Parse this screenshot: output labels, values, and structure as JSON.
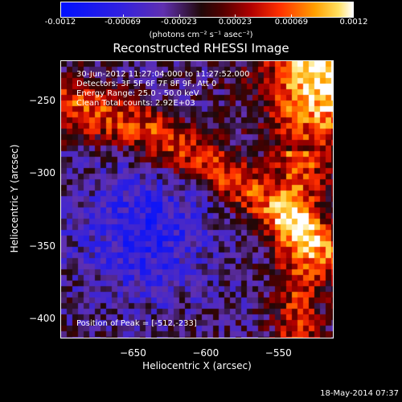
{
  "colorbar": {
    "min": -0.0012,
    "max": 0.0012,
    "tick_labels": [
      "-0.0012",
      "-0.00069",
      "-0.00023",
      "0.00023",
      "0.00069",
      "0.0012"
    ],
    "tick_values": [
      -0.0012,
      -0.00069,
      -0.00023,
      0.00023,
      0.00069,
      0.0012
    ],
    "unit_label": "(photons cm⁻² s⁻¹ asec⁻²)"
  },
  "chart_data": {
    "type": "heatmap",
    "title": "Reconstructed RHESSI Image",
    "xlabel": "Heliocentric X (arcsec)",
    "ylabel": "Heliocentric Y (arcsec)",
    "xlim": [
      -700,
      -512
    ],
    "ylim": [
      -413,
      -222
    ],
    "x_ticks": [
      -650,
      -600,
      -550
    ],
    "y_ticks": [
      -250,
      -300,
      -350,
      -400
    ],
    "colormap": "blue-purple-black-red-orange-yellow-white",
    "peak_position": [
      -512,
      -233
    ],
    "annotations": {
      "time_range": "30-Jun-2012 11:27:04.000 to 11:27:52.000",
      "detectors": "Detectors: 3F 5F 6F 7F 8F 9F, Att 0",
      "energy": "Energy Range: 25.0 - 50.0 keV",
      "clean": "Clean     Total counts: 2.92E+03",
      "peak": "Position of Peak = [-512,-233]"
    }
  },
  "footer": {
    "datestamp": "18-May-2014 07:37"
  }
}
